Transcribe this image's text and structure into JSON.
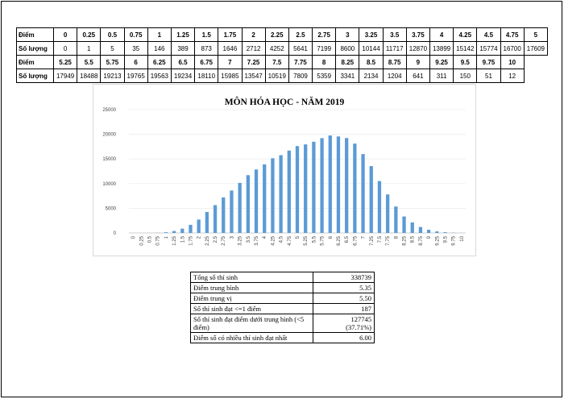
{
  "score_table": {
    "score_label": "Điểm",
    "count_label": "Số lượng",
    "rows": [
      {
        "scores": [
          "0",
          "0.25",
          "0.5",
          "0.75",
          "1",
          "1.25",
          "1.5",
          "1.75",
          "2",
          "2.25",
          "2.5",
          "2.75",
          "3",
          "3.25",
          "3.5",
          "3.75",
          "4",
          "4.25",
          "4.5",
          "4.75",
          "5"
        ],
        "counts": [
          "0",
          "1",
          "5",
          "35",
          "146",
          "389",
          "873",
          "1646",
          "2712",
          "4252",
          "5641",
          "7199",
          "8600",
          "10144",
          "11717",
          "12870",
          "13899",
          "15142",
          "15774",
          "16700",
          "17609"
        ]
      },
      {
        "scores": [
          "5.25",
          "5.5",
          "5.75",
          "6",
          "6.25",
          "6.5",
          "6.75",
          "7",
          "7.25",
          "7.5",
          "7.75",
          "8",
          "8.25",
          "8.5",
          "8.75",
          "9",
          "9.25",
          "9.5",
          "9.75",
          "10"
        ],
        "counts": [
          "17949",
          "18488",
          "19213",
          "19765",
          "19563",
          "19234",
          "18110",
          "15985",
          "13547",
          "10519",
          "7809",
          "5359",
          "3341",
          "2134",
          "1204",
          "641",
          "311",
          "150",
          "51",
          "12"
        ]
      }
    ]
  },
  "chart_data": {
    "type": "bar",
    "title": "MÔN HÓA HỌC - NĂM 2019",
    "categories": [
      "0",
      "0.25",
      "0.5",
      "0.75",
      "1",
      "1.25",
      "1.5",
      "1.75",
      "2",
      "2.25",
      "2.5",
      "2.75",
      "3",
      "3.25",
      "3.5",
      "3.75",
      "4",
      "4.25",
      "4.5",
      "4.75",
      "5",
      "5.25",
      "5.5",
      "5.75",
      "6",
      "6.25",
      "6.5",
      "6.75",
      "7",
      "7.25",
      "7.5",
      "7.75",
      "8",
      "8.25",
      "8.5",
      "8.75",
      "9",
      "9.25",
      "9.5",
      "9.75",
      "10"
    ],
    "values": [
      0,
      1,
      5,
      35,
      146,
      389,
      873,
      1646,
      2712,
      4252,
      5641,
      7199,
      8600,
      10144,
      11717,
      12870,
      13899,
      15142,
      15774,
      16700,
      17609,
      17949,
      18488,
      19213,
      19765,
      19563,
      19234,
      18110,
      15985,
      13547,
      10519,
      7809,
      5359,
      3341,
      2134,
      1204,
      641,
      311,
      150,
      51,
      12
    ],
    "ylim": [
      0,
      25000
    ],
    "yticks": [
      "0",
      "5000",
      "10000",
      "15000",
      "20000",
      "25000"
    ],
    "xlabel": "",
    "ylabel": "",
    "grid": true,
    "color": "#5b9bd5"
  },
  "summary": [
    {
      "label": "Tổng số thí sinh",
      "value": "338739"
    },
    {
      "label": "Điểm trung bình",
      "value": "5.35"
    },
    {
      "label": "Điểm trung vị",
      "value": "5.50"
    },
    {
      "label": "Số thí sinh đạt <=1 điểm",
      "value": "187"
    },
    {
      "label": "Số thí sinh đạt điểm dưới trung bình (<5 điểm)",
      "value": "127745",
      "value2": "(37.71%)"
    },
    {
      "label": "Điểm số có nhiều thí sinh đạt nhất",
      "value": "6.00"
    }
  ]
}
